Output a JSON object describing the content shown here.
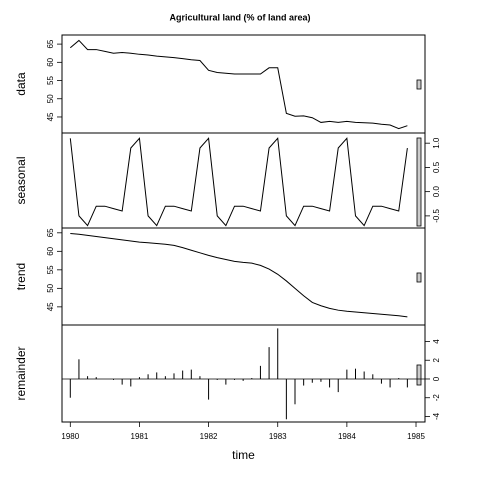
{
  "chart_data": [
    {
      "type": "line",
      "title": "Agricultural land (% of land area)",
      "ylabel": "data",
      "axis_side": "left",
      "color": "#000000",
      "x": [
        1980,
        1980.125,
        1980.25,
        1980.375,
        1980.5,
        1980.625,
        1980.75,
        1980.875,
        1981,
        1981.125,
        1981.25,
        1981.375,
        1981.5,
        1981.625,
        1981.75,
        1981.875,
        1982,
        1982.125,
        1982.25,
        1982.375,
        1982.5,
        1982.625,
        1982.75,
        1982.875,
        1983,
        1983.125,
        1983.25,
        1983.375,
        1983.5,
        1983.625,
        1983.75,
        1983.875,
        1984,
        1984.125,
        1984.25,
        1984.375,
        1984.5,
        1984.625,
        1984.75,
        1984.875
      ],
      "values": [
        64,
        66,
        63.5,
        63.5,
        63,
        62.5,
        62.7,
        62.5,
        62.2,
        62,
        61.7,
        61.5,
        61.3,
        61,
        60.7,
        60.5,
        57.8,
        57.2,
        57,
        56.8,
        56.8,
        56.8,
        56.8,
        58.5,
        58.5,
        46,
        45.2,
        45.3,
        44.8,
        43.5,
        43.8,
        43.5,
        43.8,
        43.5,
        43.4,
        43.3,
        43,
        42.8,
        41.8,
        42.6
      ],
      "xlim": [
        1979.88,
        1985.13
      ],
      "ylim": [
        40.6,
        67.5
      ],
      "yticks": [
        45,
        50,
        55,
        60,
        65
      ]
    },
    {
      "type": "line",
      "ylabel": "seasonal",
      "axis_side": "right",
      "color": "#000000",
      "x": [
        1980,
        1980.125,
        1980.25,
        1980.375,
        1980.5,
        1980.625,
        1980.75,
        1980.875,
        1981,
        1981.125,
        1981.25,
        1981.375,
        1981.5,
        1981.625,
        1981.75,
        1981.875,
        1982,
        1982.125,
        1982.25,
        1982.375,
        1982.5,
        1982.625,
        1982.75,
        1982.875,
        1983,
        1983.125,
        1983.25,
        1983.375,
        1983.5,
        1983.625,
        1983.75,
        1983.875,
        1984,
        1984.125,
        1984.25,
        1984.375,
        1984.5,
        1984.625,
        1984.75,
        1984.875
      ],
      "values": [
        1.1,
        -0.5,
        -0.7,
        -0.3,
        -0.3,
        -0.35,
        -0.4,
        0.9,
        1.1,
        -0.5,
        -0.7,
        -0.3,
        -0.3,
        -0.35,
        -0.4,
        0.9,
        1.1,
        -0.5,
        -0.7,
        -0.3,
        -0.3,
        -0.35,
        -0.4,
        0.9,
        1.1,
        -0.5,
        -0.7,
        -0.3,
        -0.3,
        -0.35,
        -0.4,
        0.9,
        1.1,
        -0.5,
        -0.7,
        -0.3,
        -0.3,
        -0.35,
        -0.4,
        0.9
      ],
      "xlim": [
        1979.88,
        1985.13
      ],
      "ylim": [
        -0.75,
        1.21
      ],
      "yticks": [
        {
          "value": -0.5,
          "label": "-0.5"
        },
        {
          "value": 0,
          "label": "0.0"
        },
        {
          "value": 0.5,
          "label": "0.5"
        },
        {
          "value": 1,
          "label": "1.0"
        }
      ]
    },
    {
      "type": "line",
      "ylabel": "trend",
      "axis_side": "left",
      "color": "#000000",
      "x": [
        1980,
        1980.125,
        1980.25,
        1980.375,
        1980.5,
        1980.625,
        1980.75,
        1980.875,
        1981,
        1981.125,
        1981.25,
        1981.375,
        1981.5,
        1981.625,
        1981.75,
        1981.875,
        1982,
        1982.125,
        1982.25,
        1982.375,
        1982.5,
        1982.625,
        1982.75,
        1982.875,
        1983,
        1983.125,
        1983.25,
        1983.375,
        1983.5,
        1983.625,
        1983.75,
        1983.875,
        1984,
        1984.125,
        1984.25,
        1984.375,
        1984.5,
        1984.625,
        1984.75,
        1984.875
      ],
      "values": [
        64.8,
        64.6,
        64.3,
        64,
        63.7,
        63.4,
        63.1,
        62.8,
        62.5,
        62.3,
        62.1,
        61.9,
        61.6,
        61,
        60.3,
        59.6,
        58.9,
        58.3,
        57.8,
        57.3,
        57,
        56.8,
        56.2,
        55.2,
        53.8,
        52,
        50,
        48,
        46.2,
        45.3,
        44.6,
        44.1,
        43.8,
        43.6,
        43.4,
        43.2,
        43,
        42.8,
        42.6,
        42.3
      ],
      "xlim": [
        1979.88,
        1985.13
      ],
      "ylim": [
        40.1,
        66.3
      ],
      "yticks": [
        45,
        50,
        55,
        60,
        65
      ]
    },
    {
      "type": "bar",
      "ylabel": "remainder",
      "axis_side": "right",
      "color": "#000000",
      "xlabel": "time",
      "x": [
        1980,
        1980.125,
        1980.25,
        1980.375,
        1980.5,
        1980.625,
        1980.75,
        1980.875,
        1981,
        1981.125,
        1981.25,
        1981.375,
        1981.5,
        1981.625,
        1981.75,
        1981.875,
        1982,
        1982.125,
        1982.25,
        1982.375,
        1982.5,
        1982.625,
        1982.75,
        1982.875,
        1983,
        1983.125,
        1983.25,
        1983.375,
        1983.5,
        1983.625,
        1983.75,
        1983.875,
        1984,
        1984.125,
        1984.25,
        1984.375,
        1984.5,
        1984.625,
        1984.75,
        1984.875
      ],
      "values": [
        -2,
        2.1,
        0.3,
        0.2,
        0,
        -0.1,
        -0.6,
        -0.8,
        0.2,
        0.5,
        0.7,
        0.3,
        0.6,
        0.9,
        1,
        0.3,
        -2.2,
        -0.1,
        -0.6,
        -0.1,
        -0.2,
        0.1,
        1.4,
        3.4,
        5.4,
        -4.3,
        -2.7,
        -0.7,
        -0.4,
        -0.3,
        -0.9,
        -1.4,
        1,
        1.1,
        0.8,
        0.5,
        -0.5,
        -0.9,
        0.1,
        -0.9
      ],
      "xlim": [
        1979.88,
        1985.13
      ],
      "ylim": [
        -4.59,
        5.76
      ],
      "yticks": [
        -4,
        -2,
        0,
        2,
        4
      ],
      "xticks": [
        1980,
        1981,
        1982,
        1983,
        1984,
        1985
      ]
    }
  ]
}
